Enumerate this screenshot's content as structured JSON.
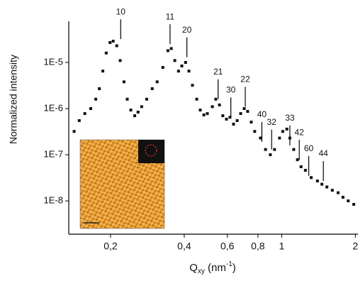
{
  "chart_data": {
    "type": "scatter",
    "x_label": {
      "main": "Q",
      "sub": "xy",
      "unit": " (nm",
      "sup": "-1",
      "end": ")"
    },
    "y_label": "Normalized intensity",
    "xscale": "log",
    "yscale": "log",
    "xlim": [
      0.135,
      2.05
    ],
    "ylim": [
      1.9e-09,
      7.8e-05
    ],
    "xticks": [
      {
        "value": 0.2,
        "label": "0,2"
      },
      {
        "value": 0.4,
        "label": "0,4"
      },
      {
        "value": 0.6,
        "label": "0,6"
      },
      {
        "value": 0.8,
        "label": "0,8"
      },
      1,
      2
    ],
    "yticks": [
      {
        "value": 1e-08,
        "label": "1E-8"
      },
      {
        "value": 1e-07,
        "label": "1E-7"
      },
      {
        "value": 1e-06,
        "label": "1E-6"
      },
      {
        "value": 1e-05,
        "label": "1E-5"
      }
    ],
    "series": [
      {
        "color": "#111111",
        "x": [
          0.142,
          0.149,
          0.157,
          0.166,
          0.174,
          0.18,
          0.186,
          0.192,
          0.199,
          0.205,
          0.212,
          0.219,
          0.227,
          0.234,
          0.242,
          0.251,
          0.259,
          0.268,
          0.281,
          0.296,
          0.31,
          0.327,
          0.343,
          0.354,
          0.366,
          0.379,
          0.391,
          0.405,
          0.418,
          0.432,
          0.45,
          0.465,
          0.481,
          0.497,
          0.521,
          0.538,
          0.557,
          0.575,
          0.595,
          0.615,
          0.636,
          0.658,
          0.68,
          0.703,
          0.726,
          0.751,
          0.776,
          0.819,
          0.859,
          0.899,
          0.935,
          0.98,
          1.01,
          1.05,
          1.08,
          1.12,
          1.16,
          1.2,
          1.25,
          1.32,
          1.4,
          1.46,
          1.53,
          1.61,
          1.7,
          1.78,
          1.87,
          1.97
        ],
        "values": [
          3.2e-07,
          5.5e-07,
          7.8e-07,
          1e-06,
          1.6e-06,
          2.7e-06,
          6.5e-06,
          1.6e-05,
          2.7e-05,
          2.9e-05,
          2.3e-05,
          1.1e-05,
          3.8e-06,
          1.6e-06,
          9.3e-07,
          7e-07,
          8.4e-07,
          1.1e-06,
          1.6e-06,
          2.7e-06,
          3.8e-06,
          7.8e-06,
          1.8e-05,
          2e-05,
          1.1e-05,
          6.5e-06,
          8.4e-06,
          1e-05,
          6.5e-06,
          3.2e-06,
          1.6e-06,
          9.3e-07,
          7.3e-07,
          7.8e-07,
          1.1e-06,
          1.6e-06,
          1.2e-06,
          7e-07,
          5.9e-07,
          6.5e-07,
          4.6e-07,
          5.5e-07,
          7.8e-07,
          1e-06,
          8.7e-07,
          5.1e-07,
          3.2e-07,
          2.3e-07,
          1.3e-07,
          1e-07,
          1.3e-07,
          2.3e-07,
          3.2e-07,
          3.6e-07,
          2.3e-07,
          1.3e-07,
          7.8e-08,
          5.5e-08,
          4.6e-08,
          3.2e-08,
          2.7e-08,
          2.3e-08,
          2e-08,
          1.7e-08,
          1.5e-08,
          1.2e-08,
          1e-08,
          8.4e-09
        ]
      }
    ],
    "annotations": [
      {
        "text": "10",
        "x": 0.22,
        "y": 3.2e-05
      },
      {
        "text": "11",
        "x": 0.35,
        "y": 2.5e-05
      },
      {
        "text": "20",
        "x": 0.41,
        "y": 1.3e-05
      },
      {
        "text": "21",
        "x": 0.55,
        "y": 1.6e-06
      },
      {
        "text": "30",
        "x": 0.62,
        "y": 6.5e-07
      },
      {
        "text": "22",
        "x": 0.71,
        "y": 1.1e-06
      },
      {
        "text": "40",
        "x": 0.83,
        "y": 1.9e-07
      },
      {
        "text": "32",
        "x": 0.91,
        "y": 1.3e-07
      },
      {
        "text": "33",
        "x": 1.08,
        "y": 1.6e-07
      },
      {
        "text": "42",
        "x": 1.18,
        "y": 7.8e-08
      },
      {
        "text": "60",
        "x": 1.29,
        "y": 3.5e-08
      },
      {
        "text": "44",
        "x": 1.48,
        "y": 2.7e-08
      }
    ]
  }
}
